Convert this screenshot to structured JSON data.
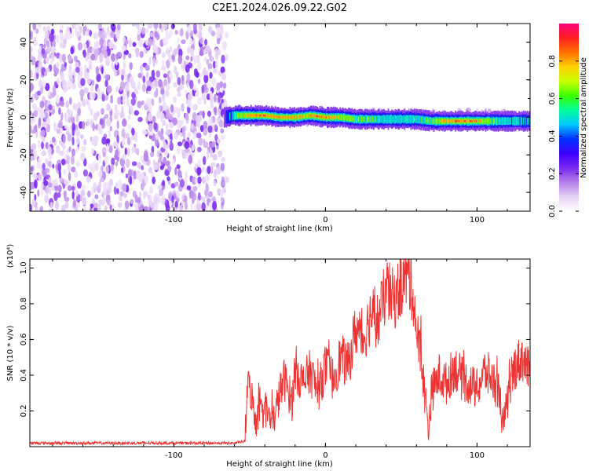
{
  "title": "C2E1.2024.026.09.22.G02",
  "chart_data": [
    {
      "type": "heatmap",
      "title": "C2E1.2024.026.09.22.G02",
      "xlabel": "Height of straight line (km)",
      "ylabel": "Frequency (Hz)",
      "xlim": [
        -195,
        135
      ],
      "ylim": [
        -50,
        50
      ],
      "x_ticks": [
        -100,
        0,
        100
      ],
      "x_tick_labels": [
        "-100",
        "0",
        "100"
      ],
      "y_ticks": [
        -40,
        -20,
        0,
        20,
        40
      ],
      "y_tick_labels": [
        "-40",
        "-20",
        "0",
        "20",
        "40"
      ],
      "colorbar": {
        "label": "Normalized spectral amplitude",
        "range": [
          0,
          1
        ],
        "ticks": [
          0.0,
          0.2,
          0.4,
          0.6,
          0.8
        ],
        "tick_labels": [
          "0.0",
          "0.2",
          "0.4",
          "0.6",
          "0.8"
        ],
        "colors": [
          "#ffffff",
          "#e6d2f5",
          "#b480ea",
          "#7a28f0",
          "#3c00ff",
          "#0030ff",
          "#00c8ff",
          "#00ff9c",
          "#3cff00",
          "#c8ff00",
          "#ffd000",
          "#ff7000",
          "#ff2020",
          "#ff0080"
        ]
      },
      "noise_region": {
        "x_range": [
          -195,
          -65
        ],
        "freq_range": [
          -50,
          50
        ],
        "amplitude": 0.2
      },
      "signal_track": {
        "x": [
          -67,
          -60,
          -50,
          -40,
          -30,
          -20,
          -10,
          0,
          10,
          20,
          30,
          40,
          50,
          60,
          70,
          80,
          90,
          100,
          110,
          120,
          135
        ],
        "frequency": [
          0,
          1,
          1,
          1,
          0,
          0,
          1,
          0,
          0,
          -1,
          -1,
          -1,
          -1,
          -1,
          -2,
          -2,
          -2,
          -2,
          -2,
          -2,
          -2
        ],
        "amplitude": [
          0.25,
          0.6,
          0.8,
          0.85,
          0.8,
          0.75,
          0.8,
          0.85,
          0.7,
          0.6,
          0.6,
          0.55,
          0.55,
          0.55,
          0.6,
          0.75,
          0.85,
          0.8,
          0.6,
          0.5,
          0.45
        ]
      },
      "grid": false
    },
    {
      "type": "line",
      "xlabel": "Height of straight line (km)",
      "ylabel": "SNR (10 * v/v)",
      "y_multiplier": "(x10⁴)",
      "xlim": [
        -195,
        135
      ],
      "ylim": [
        0,
        1.05
      ],
      "x_ticks": [
        -100,
        0,
        100
      ],
      "x_tick_labels": [
        "-100",
        "0",
        "100"
      ],
      "y_ticks": [
        0.2,
        0.4,
        0.6,
        0.8,
        1.0
      ],
      "y_tick_labels": [
        "0.2",
        "0.4",
        "0.6",
        "0.8",
        "1.0"
      ],
      "color": "#ee3333",
      "grid": false,
      "series": [
        {
          "x": [
            -195,
            -160,
            -120,
            -80,
            -60,
            -53,
            -52,
            -50,
            -47,
            -45,
            -40,
            -35,
            -30,
            -27,
            -22,
            -20,
            -15,
            -10,
            -5,
            0,
            5,
            10,
            15,
            20,
            25,
            30,
            35,
            40,
            45,
            50,
            52,
            55,
            58,
            60,
            63,
            68,
            70,
            75,
            80,
            85,
            90,
            95,
            100,
            105,
            110,
            115,
            117,
            120,
            125,
            130,
            135
          ],
          "values": [
            0.02,
            0.02,
            0.02,
            0.02,
            0.02,
            0.03,
            0.28,
            0.35,
            0.18,
            0.14,
            0.22,
            0.12,
            0.3,
            0.38,
            0.25,
            0.45,
            0.35,
            0.42,
            0.3,
            0.45,
            0.38,
            0.5,
            0.45,
            0.66,
            0.6,
            0.75,
            0.7,
            0.88,
            0.82,
            0.9,
            0.95,
            0.95,
            0.85,
            0.65,
            0.5,
            0.1,
            0.3,
            0.4,
            0.35,
            0.45,
            0.38,
            0.35,
            0.32,
            0.42,
            0.38,
            0.3,
            0.1,
            0.25,
            0.45,
            0.5,
            0.4
          ]
        }
      ]
    }
  ]
}
